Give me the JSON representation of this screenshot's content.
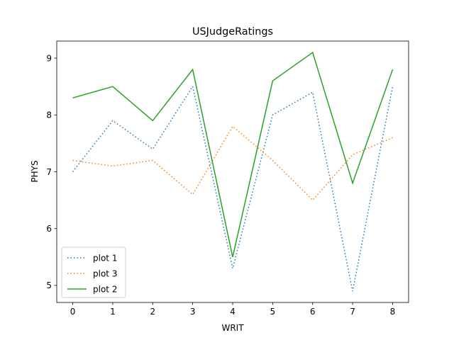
{
  "chart_data": {
    "type": "line",
    "title": "USJudgeRatings",
    "xlabel": "WRIT",
    "ylabel": "PHYS",
    "x": [
      0,
      1,
      2,
      3,
      4,
      5,
      6,
      7,
      8
    ],
    "xlim": [
      -0.4,
      8.4
    ],
    "ylim": [
      4.7,
      9.3
    ],
    "xticks": [
      "0",
      "1",
      "2",
      "3",
      "4",
      "5",
      "6",
      "7",
      "8"
    ],
    "yticks": [
      "5",
      "6",
      "7",
      "8",
      "9"
    ],
    "grid": false,
    "legend_position": "lower-left",
    "series": [
      {
        "name": "plot 1",
        "color": "#1f77b4",
        "style": "dotted",
        "values": [
          7.0,
          7.9,
          7.4,
          8.5,
          5.3,
          8.0,
          8.4,
          4.9,
          8.5
        ]
      },
      {
        "name": "plot 3",
        "color": "#ff7f0e",
        "style": "dotted",
        "values": [
          7.2,
          7.1,
          7.2,
          6.6,
          7.8,
          7.2,
          6.5,
          7.3,
          7.6
        ]
      },
      {
        "name": "plot 2",
        "color": "#2ca02c",
        "style": "solid",
        "values": [
          8.3,
          8.5,
          7.9,
          8.8,
          5.5,
          8.6,
          9.1,
          6.8,
          8.8
        ]
      }
    ]
  }
}
